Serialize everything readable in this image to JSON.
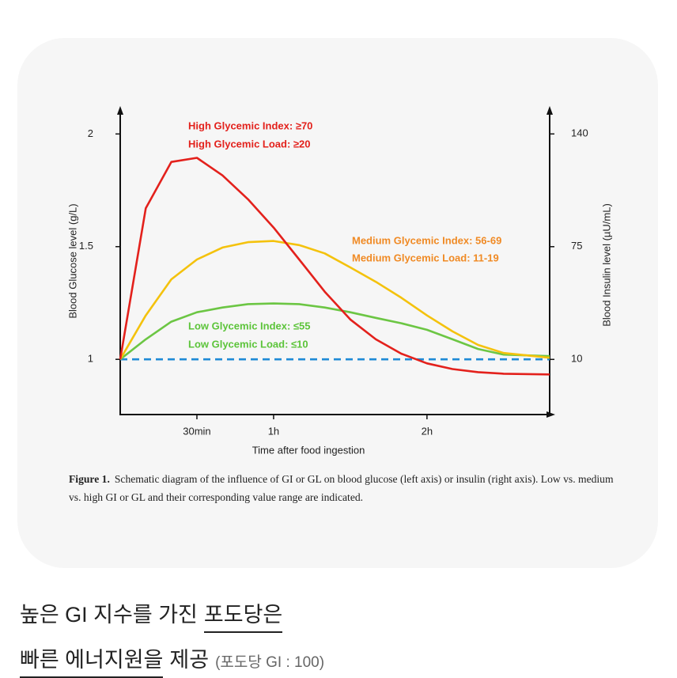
{
  "chart_data": {
    "type": "line",
    "xlabel": "Time after food ingestion",
    "ylabel": "Blood Glucose level (g/L)",
    "y2label": "Blood Insulin level (µU/mL)",
    "x": [
      0,
      10,
      20,
      30,
      40,
      50,
      60,
      70,
      80,
      90,
      100,
      110,
      120,
      130,
      140,
      150,
      168
    ],
    "xlim": [
      0,
      168
    ],
    "xticks": [
      {
        "value": 30,
        "label": "30min"
      },
      {
        "value": 60,
        "label": "1h"
      },
      {
        "value": 120,
        "label": "2h"
      }
    ],
    "ylim": [
      0.755,
      2.124
    ],
    "yticks": [
      1,
      1.5,
      2
    ],
    "y2lim": [
      -21.8,
      156.1
    ],
    "y2ticks": [
      10,
      75,
      140
    ],
    "series": [
      {
        "color": "#e3211c",
        "values": [
          1,
          1.67,
          1.876,
          1.894,
          1.816,
          1.71,
          1.585,
          1.443,
          1.3,
          1.177,
          1.089,
          1.025,
          0.982,
          0.957,
          0.943,
          0.936,
          0.933
        ]
      },
      {
        "color": "#f4c20d",
        "values": [
          1,
          1.195,
          1.355,
          1.443,
          1.496,
          1.52,
          1.525,
          1.507,
          1.47,
          1.408,
          1.344,
          1.273,
          1.195,
          1.124,
          1.064,
          1.028,
          1.007
        ]
      },
      {
        "color": "#6cc644",
        "values": [
          1,
          1.089,
          1.167,
          1.209,
          1.23,
          1.245,
          1.248,
          1.245,
          1.23,
          1.209,
          1.184,
          1.16,
          1.131,
          1.089,
          1.046,
          1.021,
          1.014
        ]
      },
      {
        "color": "#1f8ad6",
        "style": "dashed",
        "values": [
          1,
          1,
          1,
          1,
          1,
          1,
          1,
          1,
          1,
          1,
          1,
          1,
          1,
          1,
          1,
          1,
          1
        ]
      }
    ],
    "annotations": [
      {
        "text": "High Glycemic Index: ≥70",
        "color": "#e3211c"
      },
      {
        "text": "High Glycemic Load: ≥20",
        "color": "#e3211c"
      },
      {
        "text": "Medium Glycemic Index: 56-69",
        "color": "#f08a24"
      },
      {
        "text": "Medium Glycemic Load: 11-19",
        "color": "#f08a24"
      },
      {
        "text": "Low Glycemic Index: ≤55",
        "color": "#5cc43a"
      },
      {
        "text": "Low Glycemic Load: ≤10",
        "color": "#5cc43a"
      }
    ]
  },
  "caption": {
    "label": "Figure 1.",
    "text": "Schematic diagram of the influence of GI or GL on blood glucose (left axis) or insulin (right axis). Low vs. medium vs. high GI or GL and their corresponding value range are indicated."
  },
  "article": {
    "line1": [
      "높은 GI 지수를 가진",
      "포도당은"
    ],
    "line2": [
      "빠른 에너지원을",
      "제공",
      "(포도당 GI : 100)"
    ]
  }
}
